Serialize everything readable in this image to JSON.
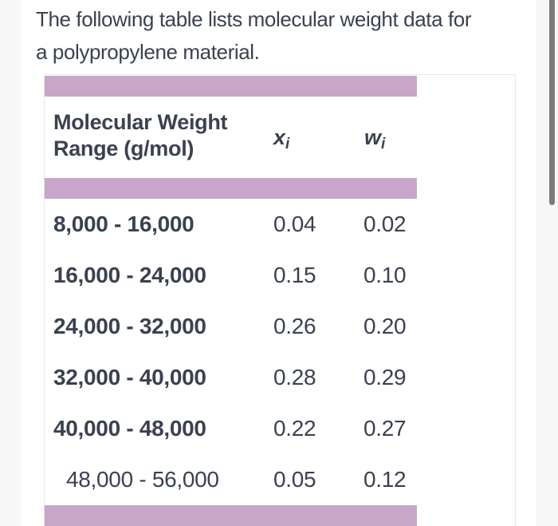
{
  "intro": {
    "line1": "The following table lists molecular weight data for",
    "line2": "a polypropylene material."
  },
  "table": {
    "header": {
      "range_label_line1": "Molecular Weight",
      "range_label_line2": "Range (g/mol)",
      "col_xi": {
        "base": "x",
        "sub": "i"
      },
      "col_wi": {
        "base": "w",
        "sub": "i"
      }
    },
    "rows": [
      {
        "range": "8,000 - 16,000",
        "xi": "0.04",
        "wi": "0.02"
      },
      {
        "range": "16,000 - 24,000",
        "xi": "0.15",
        "wi": "0.10"
      },
      {
        "range": "24,000 - 32,000",
        "xi": "0.26",
        "wi": "0.20"
      },
      {
        "range": "32,000 - 40,000",
        "xi": "0.28",
        "wi": "0.29"
      },
      {
        "range": "40,000 - 48,000",
        "xi": "0.22",
        "wi": "0.27"
      },
      {
        "range": "48,000 - 56,000",
        "xi": "0.05",
        "wi": "0.12"
      }
    ]
  },
  "colors": {
    "band": "#c8a6ca",
    "text": "#3a4250",
    "card_border": "#e6e5e8",
    "side_strip": "#f7f7f8",
    "scroll_thumb": "#7a7a7a",
    "page_bg": "#ffffff"
  }
}
